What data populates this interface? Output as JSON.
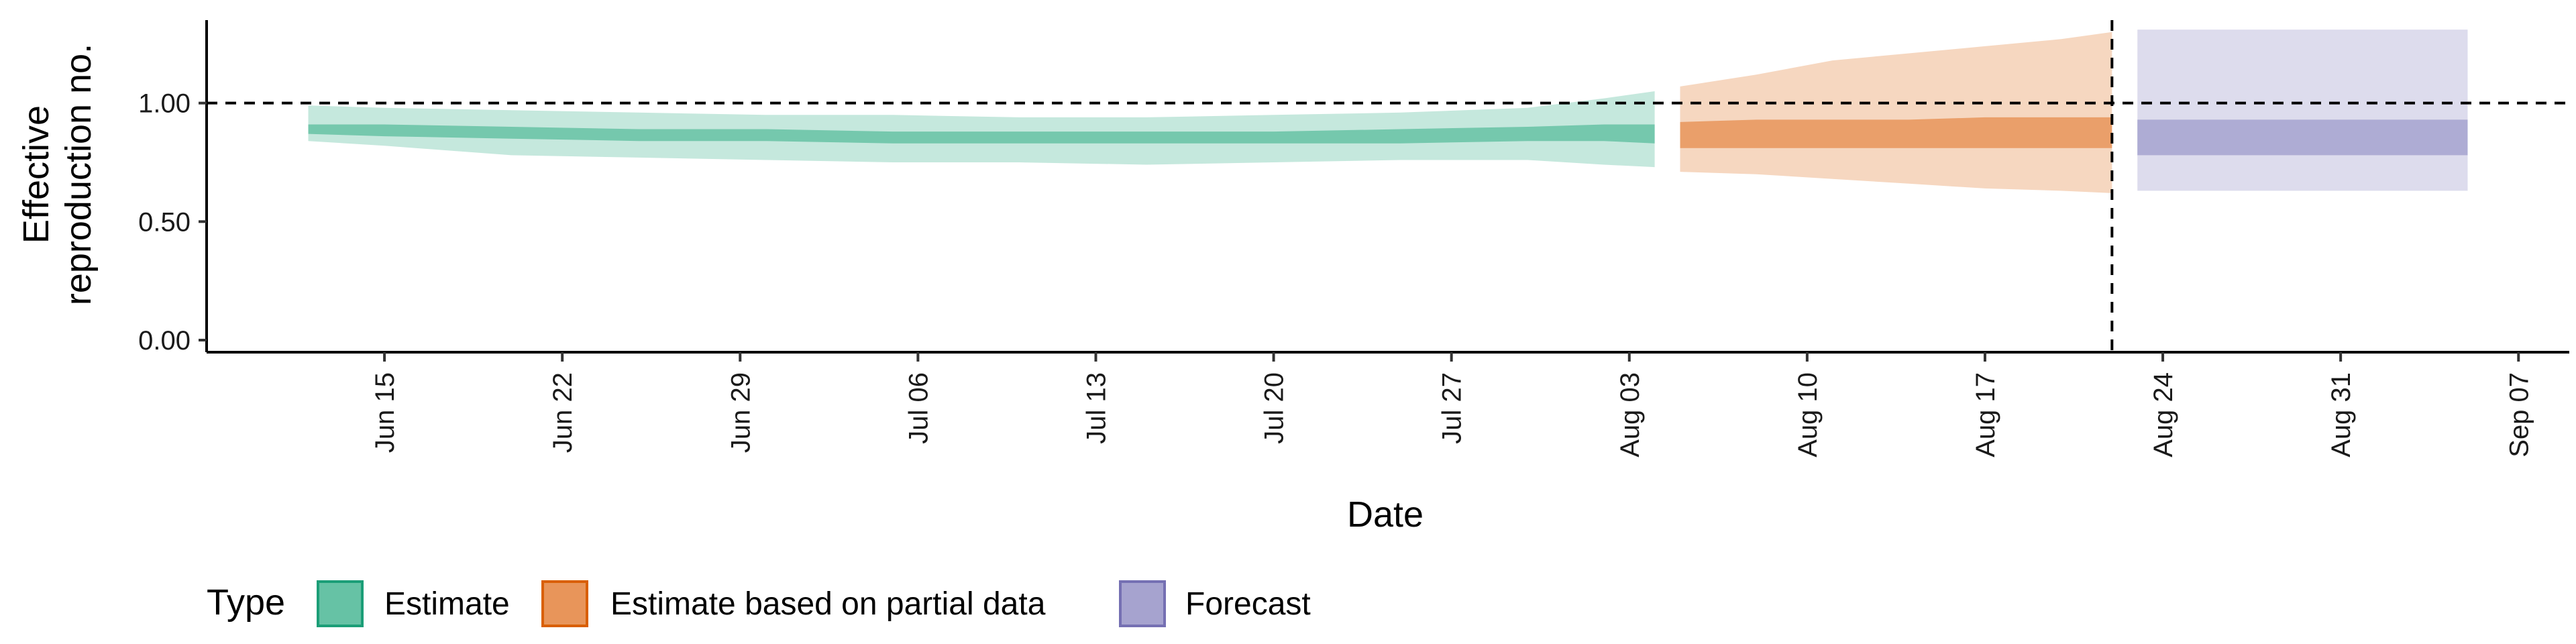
{
  "chart_data": {
    "type": "area",
    "ylabel_lines": [
      "Effective",
      "reproduction no."
    ],
    "xlabel": "Date",
    "ylim": [
      0,
      1.35
    ],
    "y_ticks": [
      "0.00",
      "0.50",
      "1.00"
    ],
    "y_tick_values": [
      0,
      0.5,
      1
    ],
    "reference_line_y": 1.0,
    "reference_line_x": "2020-08-22",
    "xlim": [
      "2020-06-08",
      "2020-09-09"
    ],
    "x_ticks": [
      {
        "date": "2020-06-15",
        "label": "Jun 15"
      },
      {
        "date": "2020-06-22",
        "label": "Jun 22"
      },
      {
        "date": "2020-06-29",
        "label": "Jun 29"
      },
      {
        "date": "2020-07-06",
        "label": "Jul 06"
      },
      {
        "date": "2020-07-13",
        "label": "Jul 13"
      },
      {
        "date": "2020-07-20",
        "label": "Jul 20"
      },
      {
        "date": "2020-07-27",
        "label": "Jul 27"
      },
      {
        "date": "2020-08-03",
        "label": "Aug 03"
      },
      {
        "date": "2020-08-10",
        "label": "Aug 10"
      },
      {
        "date": "2020-08-17",
        "label": "Aug 17"
      },
      {
        "date": "2020-08-24",
        "label": "Aug 24"
      },
      {
        "date": "2020-08-31",
        "label": "Aug 31"
      },
      {
        "date": "2020-09-07",
        "label": "Sep 07"
      }
    ],
    "legend": {
      "title": "Type",
      "placement": "bottom-left",
      "items": [
        "Estimate",
        "Estimate based on partial data",
        "Forecast"
      ]
    },
    "colors": {
      "estimate": "#66c2a5",
      "estimate_border": "#1b9e77",
      "partial": "#e8955a",
      "partial_border": "#d95f02",
      "forecast": "#a6a3cf",
      "forecast_border": "#7570b3"
    },
    "series": [
      {
        "name": "Estimate",
        "x": [
          "2020-06-12",
          "2020-06-15",
          "2020-06-20",
          "2020-06-25",
          "2020-06-30",
          "2020-07-05",
          "2020-07-10",
          "2020-07-15",
          "2020-07-20",
          "2020-07-25",
          "2020-07-30",
          "2020-08-02",
          "2020-08-04"
        ],
        "outer_lower": [
          0.84,
          0.82,
          0.78,
          0.77,
          0.76,
          0.75,
          0.75,
          0.74,
          0.75,
          0.76,
          0.76,
          0.74,
          0.73
        ],
        "outer_upper": [
          0.99,
          0.98,
          0.97,
          0.96,
          0.95,
          0.95,
          0.94,
          0.94,
          0.95,
          0.96,
          0.98,
          1.02,
          1.05
        ],
        "inner_lower": [
          0.87,
          0.86,
          0.85,
          0.84,
          0.84,
          0.83,
          0.83,
          0.83,
          0.83,
          0.83,
          0.84,
          0.84,
          0.83
        ],
        "inner_upper": [
          0.91,
          0.91,
          0.9,
          0.89,
          0.89,
          0.88,
          0.88,
          0.88,
          0.88,
          0.89,
          0.9,
          0.91,
          0.91
        ]
      },
      {
        "name": "Estimate based on partial data",
        "x": [
          "2020-08-05",
          "2020-08-08",
          "2020-08-11",
          "2020-08-14",
          "2020-08-17",
          "2020-08-20",
          "2020-08-22"
        ],
        "outer_lower": [
          0.71,
          0.7,
          0.68,
          0.66,
          0.64,
          0.63,
          0.62
        ],
        "outer_upper": [
          1.07,
          1.12,
          1.18,
          1.21,
          1.24,
          1.27,
          1.3
        ],
        "inner_lower": [
          0.81,
          0.81,
          0.81,
          0.81,
          0.81,
          0.81,
          0.81
        ],
        "inner_upper": [
          0.92,
          0.93,
          0.93,
          0.93,
          0.94,
          0.94,
          0.94
        ]
      },
      {
        "name": "Forecast",
        "x": [
          "2020-08-23",
          "2020-09-05"
        ],
        "outer_lower": [
          0.63,
          0.63
        ],
        "outer_upper": [
          1.31,
          1.31
        ],
        "inner_lower": [
          0.78,
          0.78
        ],
        "inner_upper": [
          0.93,
          0.93
        ]
      }
    ]
  }
}
